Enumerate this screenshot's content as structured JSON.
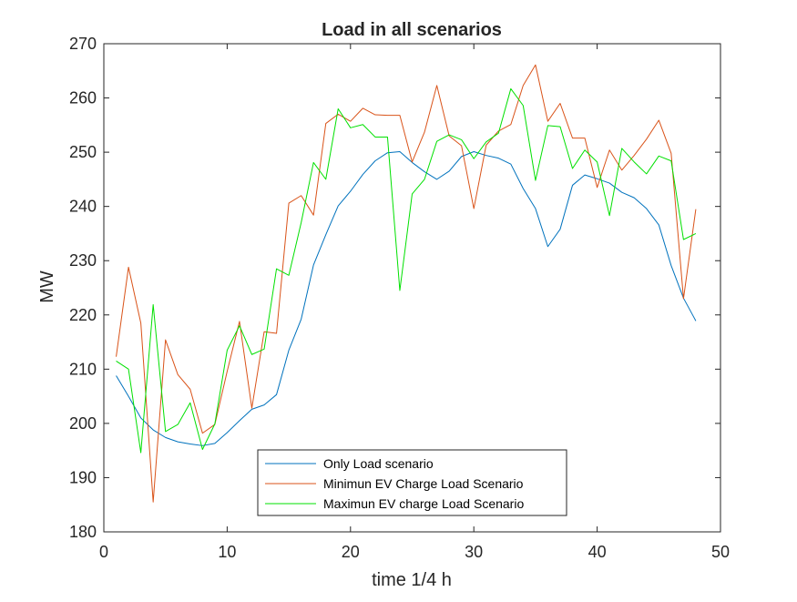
{
  "chart_data": {
    "type": "line",
    "title": "Load in all scenarios",
    "xlabel": "time 1/4 h",
    "ylabel": "MW",
    "xlim": [
      0,
      50
    ],
    "ylim": [
      180,
      270
    ],
    "xticks": [
      0,
      10,
      20,
      30,
      40,
      50
    ],
    "yticks": [
      180,
      190,
      200,
      210,
      220,
      230,
      240,
      250,
      260,
      270
    ],
    "grid": false,
    "legend_position": "bottom-center",
    "x": [
      1,
      2,
      3,
      4,
      5,
      6,
      7,
      8,
      9,
      10,
      11,
      12,
      13,
      14,
      15,
      16,
      17,
      18,
      19,
      20,
      21,
      22,
      23,
      24,
      25,
      26,
      27,
      28,
      29,
      30,
      31,
      32,
      33,
      34,
      35,
      36,
      37,
      38,
      39,
      40,
      41,
      42,
      43,
      44,
      45,
      46,
      47,
      48
    ],
    "series": [
      {
        "name": "Only Load scenario",
        "color": "#0072BD",
        "values": [
          208.8,
          205.0,
          201.0,
          198.8,
          197.4,
          196.6,
          196.2,
          195.9,
          196.3,
          198.3,
          200.5,
          202.6,
          203.4,
          205.3,
          213.5,
          219.2,
          229.2,
          234.8,
          240.1,
          242.8,
          245.9,
          248.4,
          249.9,
          250.1,
          248.1,
          246.4,
          245.0,
          246.5,
          249.2,
          250.1,
          249.4,
          248.9,
          247.8,
          243.3,
          239.6,
          232.6,
          235.8,
          243.9,
          245.8,
          245.1,
          244.3,
          242.6,
          241.6,
          239.6,
          236.6,
          229.1,
          223.1,
          218.9
        ]
      },
      {
        "name": "Minimun EV Charge Load Scenario",
        "color": "#D95319",
        "values": [
          212.3,
          228.8,
          218.5,
          185.5,
          215.4,
          209.0,
          206.3,
          198.2,
          199.8,
          209.6,
          218.8,
          202.8,
          216.9,
          216.6,
          240.6,
          242.0,
          238.4,
          255.3,
          257.0,
          255.7,
          258.1,
          256.9,
          256.8,
          256.8,
          248.2,
          253.7,
          262.3,
          253.0,
          251.2,
          239.6,
          251.3,
          253.9,
          255.1,
          262.3,
          266.1,
          255.7,
          259.0,
          252.6,
          252.6,
          243.5,
          250.4,
          246.7,
          249.4,
          252.4,
          255.9,
          249.8,
          223.0,
          239.5
        ]
      },
      {
        "name": "Maximun EV charge Load Scenario",
        "color": "#00E000",
        "values": [
          211.5,
          210.0,
          194.6,
          221.9,
          198.5,
          199.8,
          203.8,
          195.2,
          199.9,
          213.5,
          218.0,
          212.7,
          213.7,
          228.5,
          227.3,
          237.0,
          248.1,
          245.0,
          258.0,
          254.5,
          255.1,
          252.8,
          252.8,
          224.5,
          242.3,
          245.0,
          252.0,
          253.2,
          252.3,
          248.8,
          251.9,
          253.5,
          261.7,
          258.6,
          244.8,
          254.9,
          254.7,
          247.0,
          250.4,
          248.2,
          238.3,
          250.7,
          248.2,
          246.0,
          249.3,
          248.4,
          233.9,
          235.0
        ]
      }
    ]
  }
}
